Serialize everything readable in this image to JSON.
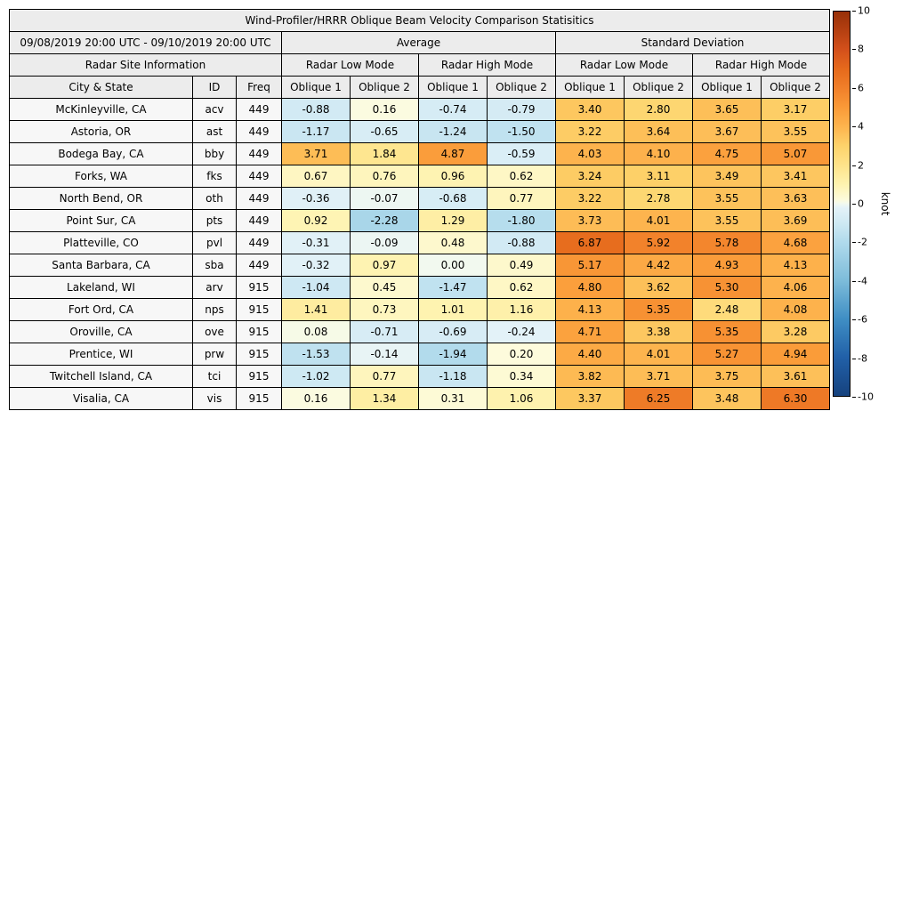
{
  "chart_data": {
    "type": "table",
    "title": "Wind-Profiler/HRRR Oblique Beam Velocity Comparison Statisitics",
    "date_range": "09/08/2019 20:00 UTC - 09/10/2019 20:00 UTC",
    "groups": {
      "average": "Average",
      "std": "Standard Deviation",
      "site_info": "Radar Site Information",
      "low_mode": "Radar Low Mode",
      "high_mode": "Radar High Mode"
    },
    "columns": [
      "City & State",
      "ID",
      "Freq",
      "Oblique 1",
      "Oblique 2",
      "Oblique 1",
      "Oblique 2",
      "Oblique 1",
      "Oblique 2",
      "Oblique 1",
      "Oblique 2"
    ],
    "rows": [
      {
        "city": "McKinleyville, CA",
        "id": "acv",
        "freq": "449",
        "values": [
          -0.88,
          0.16,
          -0.74,
          -0.79,
          3.4,
          2.8,
          3.65,
          3.17
        ]
      },
      {
        "city": "Astoria, OR",
        "id": "ast",
        "freq": "449",
        "values": [
          -1.17,
          -0.65,
          -1.24,
          -1.5,
          3.22,
          3.64,
          3.67,
          3.55
        ]
      },
      {
        "city": "Bodega Bay, CA",
        "id": "bby",
        "freq": "449",
        "values": [
          3.71,
          1.84,
          4.87,
          -0.59,
          4.03,
          4.1,
          4.75,
          5.07
        ]
      },
      {
        "city": "Forks, WA",
        "id": "fks",
        "freq": "449",
        "values": [
          0.67,
          0.76,
          0.96,
          0.62,
          3.24,
          3.11,
          3.49,
          3.41
        ]
      },
      {
        "city": "North Bend, OR",
        "id": "oth",
        "freq": "449",
        "values": [
          -0.36,
          -0.07,
          -0.68,
          0.77,
          3.22,
          2.78,
          3.55,
          3.63
        ]
      },
      {
        "city": "Point Sur, CA",
        "id": "pts",
        "freq": "449",
        "values": [
          0.92,
          -2.28,
          1.29,
          -1.8,
          3.73,
          4.01,
          3.55,
          3.69
        ]
      },
      {
        "city": "Platteville, CO",
        "id": "pvl",
        "freq": "449",
        "values": [
          -0.31,
          -0.09,
          0.48,
          -0.88,
          6.87,
          5.92,
          5.78,
          4.68
        ]
      },
      {
        "city": "Santa Barbara, CA",
        "id": "sba",
        "freq": "449",
        "values": [
          -0.32,
          0.97,
          0.0,
          0.49,
          5.17,
          4.42,
          4.93,
          4.13
        ]
      },
      {
        "city": "Lakeland, WI",
        "id": "arv",
        "freq": "915",
        "values": [
          -1.04,
          0.45,
          -1.47,
          0.62,
          4.8,
          3.62,
          5.3,
          4.06
        ]
      },
      {
        "city": "Fort Ord, CA",
        "id": "nps",
        "freq": "915",
        "values": [
          1.41,
          0.73,
          1.01,
          1.16,
          4.13,
          5.35,
          2.48,
          4.08
        ]
      },
      {
        "city": "Oroville, CA",
        "id": "ove",
        "freq": "915",
        "values": [
          0.08,
          -0.71,
          -0.69,
          -0.24,
          4.71,
          3.38,
          5.35,
          3.28
        ]
      },
      {
        "city": "Prentice, WI",
        "id": "prw",
        "freq": "915",
        "values": [
          -1.53,
          -0.14,
          -1.94,
          0.2,
          4.4,
          4.01,
          5.27,
          4.94
        ]
      },
      {
        "city": "Twitchell Island, CA",
        "id": "tci",
        "freq": "915",
        "values": [
          -1.02,
          0.77,
          -1.18,
          0.34,
          3.82,
          3.71,
          3.75,
          3.61
        ]
      },
      {
        "city": "Visalia, CA",
        "id": "vis",
        "freq": "915",
        "values": [
          0.16,
          1.34,
          0.31,
          1.06,
          3.37,
          6.25,
          3.48,
          6.3
        ]
      }
    ],
    "colorbar": {
      "label": "knot",
      "min": -10,
      "max": 10,
      "ticks": [
        "10",
        "8",
        "6",
        "4",
        "2",
        "0",
        "-2",
        "-4",
        "-6",
        "-8",
        "-10"
      ],
      "stops": [
        [
          -10,
          "#16427e"
        ],
        [
          -8,
          "#2160a8"
        ],
        [
          -6,
          "#3f8ec4"
        ],
        [
          -4,
          "#7dbcda"
        ],
        [
          -2,
          "#b0daec"
        ],
        [
          -1,
          "#cfe9f3"
        ],
        [
          -0.2,
          "#e4f2f8"
        ],
        [
          0,
          "#f2f9ef"
        ],
        [
          0.2,
          "#fdfbdc"
        ],
        [
          1,
          "#fef3b0"
        ],
        [
          2,
          "#fee38a"
        ],
        [
          3,
          "#fdd express"
        ]
      ]
    }
  }
}
